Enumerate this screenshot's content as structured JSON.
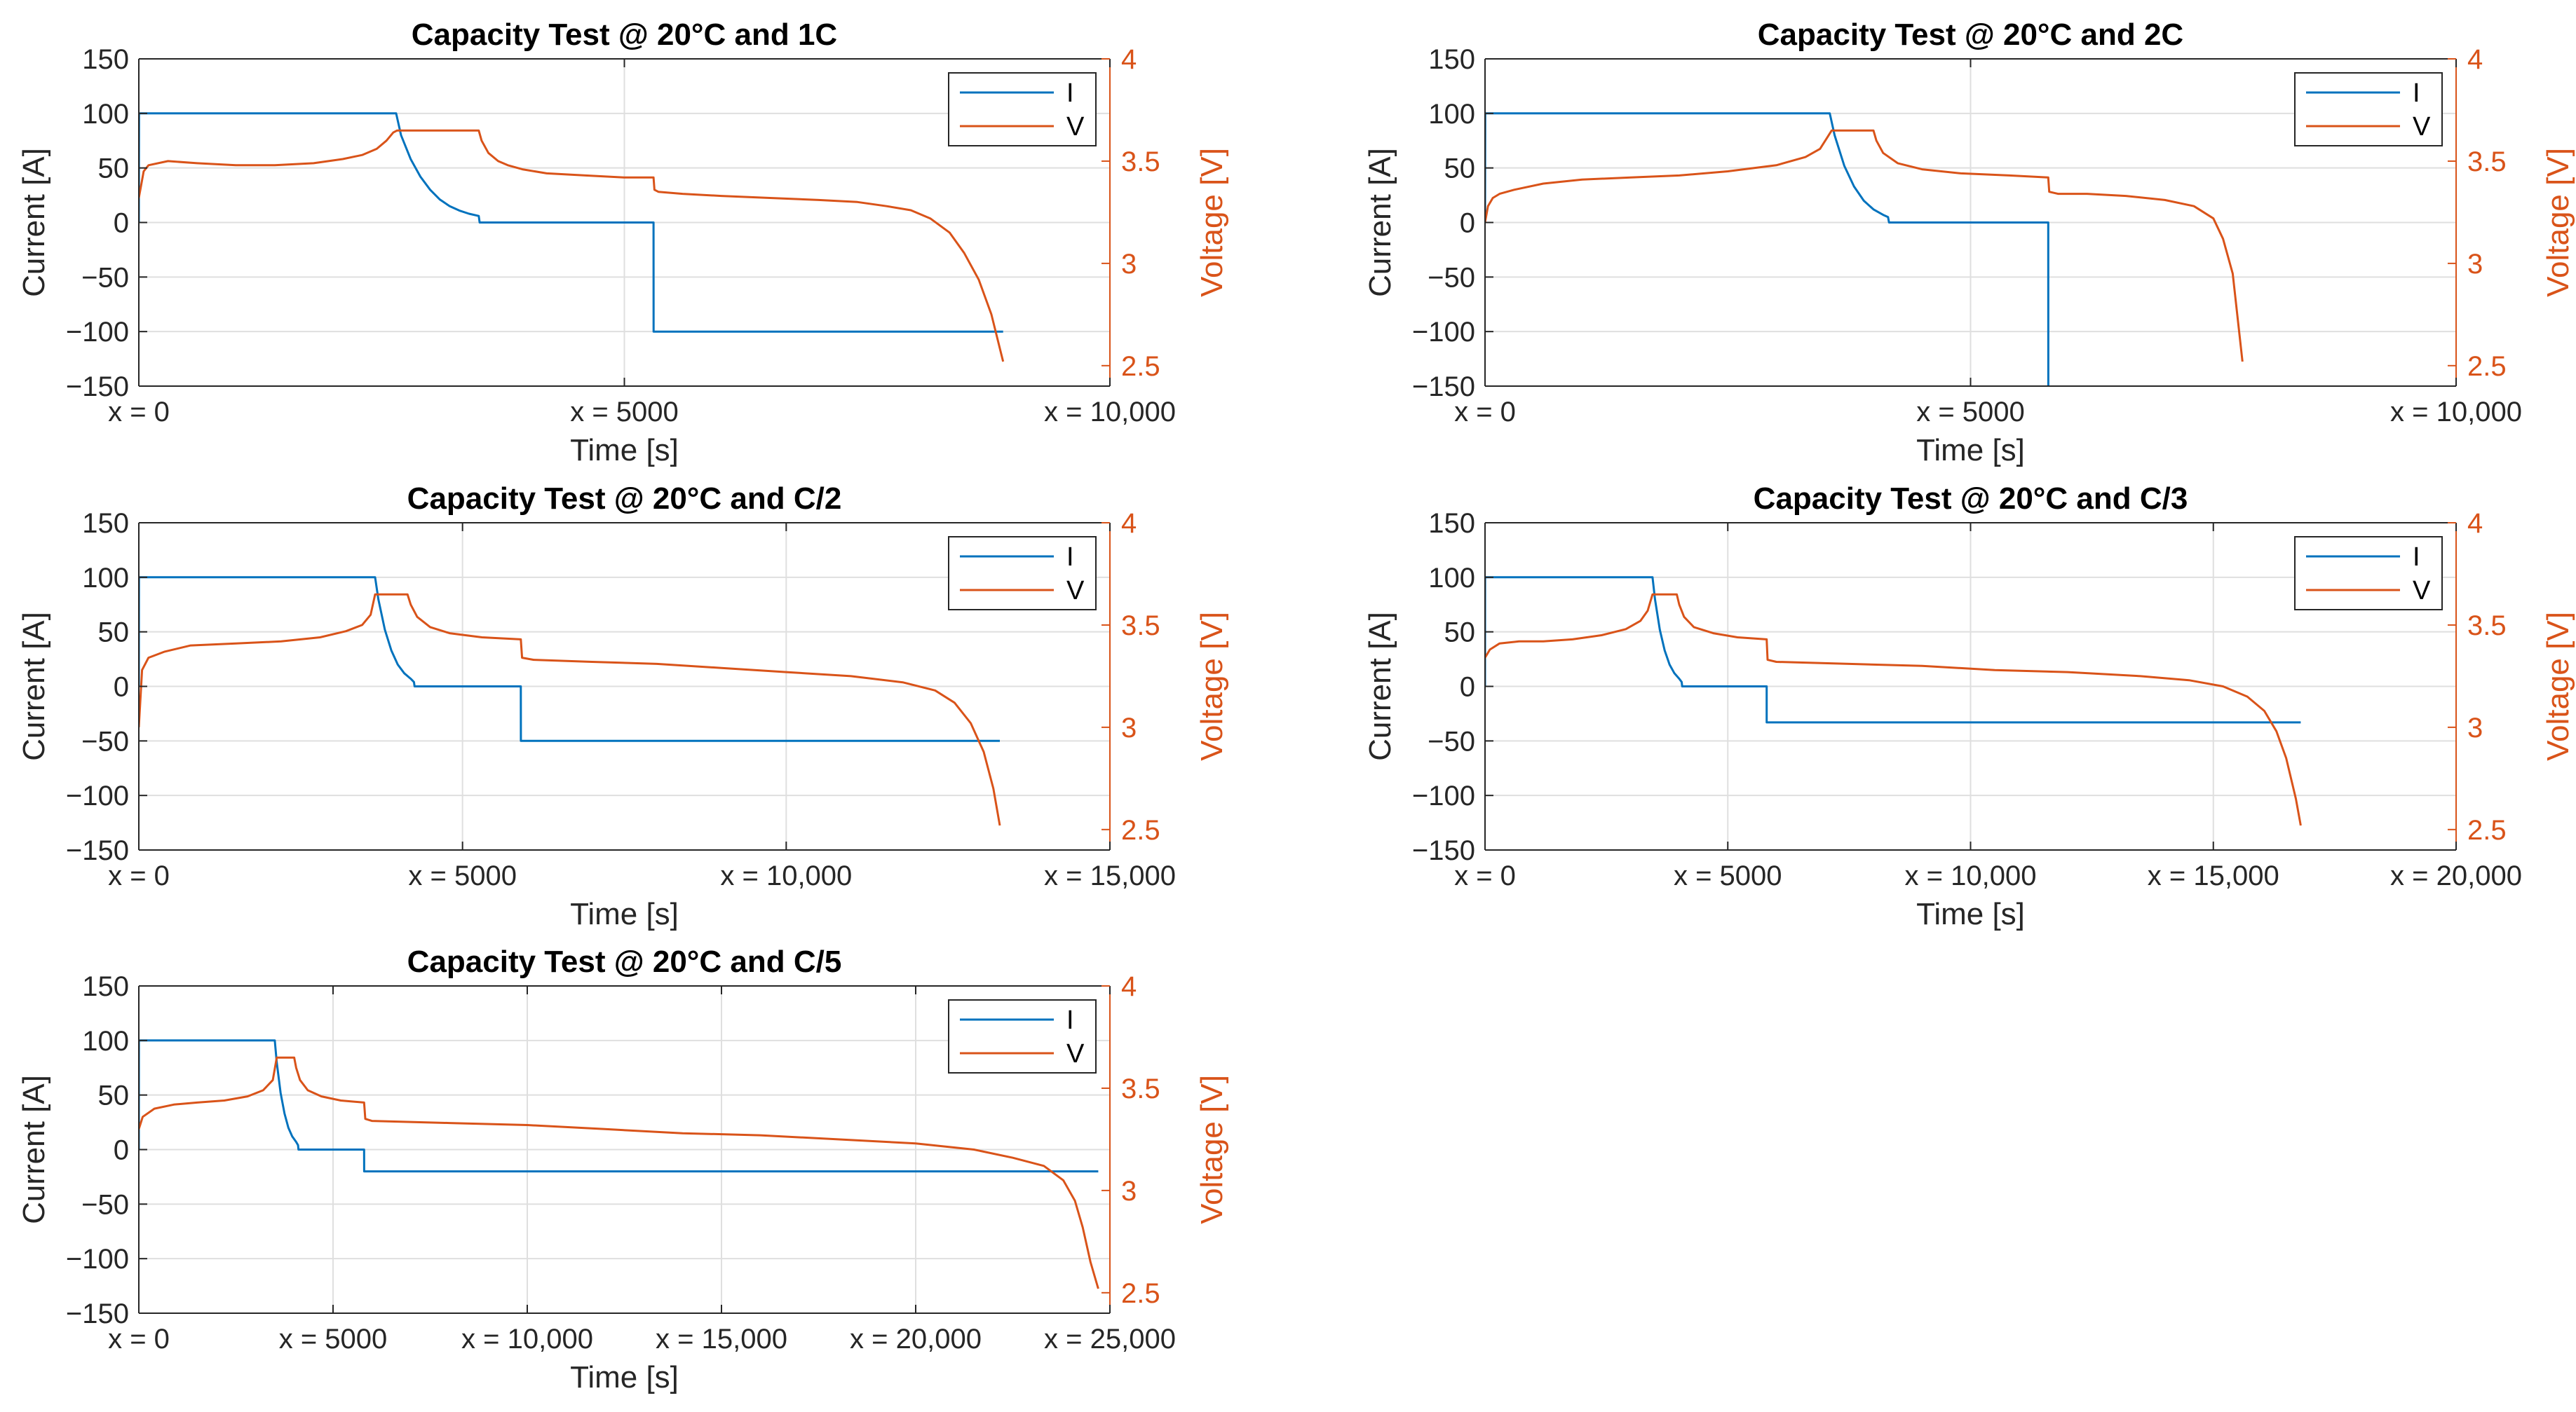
{
  "colors": {
    "current": "#0072BD",
    "voltage": "#D95319",
    "grid": "#DFDFDF",
    "axis": "#262626"
  },
  "chart_data": [
    {
      "type": "line",
      "title": "Capacity Test @ 20°C and 1C",
      "xlabel": "Time [s]",
      "ylabel": "Current [A]",
      "y2label": "Voltage [V]",
      "xlim": [
        0,
        10000
      ],
      "ylim": [
        -150,
        150
      ],
      "y2lim": [
        2.4,
        4.0
      ],
      "xticks": [
        0,
        5000,
        10000
      ],
      "xtick_labels": [
        "x = 0",
        "x = 5000",
        "x = 10,000"
      ],
      "yticks": [
        -150,
        -100,
        -50,
        0,
        50,
        100,
        150
      ],
      "ytick_labels": [
        "−150",
        "−100",
        "−50",
        "0",
        "50",
        "100",
        "150"
      ],
      "y2ticks": [
        2.5,
        3,
        3.5,
        4
      ],
      "y2tick_labels": [
        "2.5",
        "3",
        "3.5",
        "4"
      ],
      "legend": [
        "I",
        "V"
      ],
      "legend_position": "top-right",
      "grid": true,
      "series": [
        {
          "name": "I",
          "axis": "left",
          "x": [
            0,
            2,
            2650,
            2700,
            2800,
            2900,
            3000,
            3100,
            3200,
            3300,
            3400,
            3500,
            3510,
            5300,
            5301,
            8900
          ],
          "y": [
            0,
            100,
            100,
            80,
            58,
            42,
            30,
            21,
            15,
            11,
            8,
            6,
            0,
            0,
            -100,
            -100
          ]
        },
        {
          "name": "V",
          "axis": "right",
          "x": [
            0,
            50,
            100,
            300,
            600,
            1000,
            1400,
            1800,
            2100,
            2300,
            2450,
            2550,
            2620,
            2660,
            3500,
            3530,
            3600,
            3700,
            3800,
            3950,
            4200,
            4600,
            5000,
            5300,
            5310,
            5350,
            5600,
            6000,
            6500,
            7000,
            7400,
            7700,
            7950,
            8150,
            8350,
            8500,
            8650,
            8780,
            8900
          ],
          "y": [
            3.32,
            3.45,
            3.48,
            3.5,
            3.49,
            3.48,
            3.48,
            3.49,
            3.51,
            3.53,
            3.56,
            3.6,
            3.64,
            3.65,
            3.65,
            3.6,
            3.54,
            3.5,
            3.48,
            3.46,
            3.44,
            3.43,
            3.42,
            3.42,
            3.36,
            3.35,
            3.34,
            3.33,
            3.32,
            3.31,
            3.3,
            3.28,
            3.26,
            3.22,
            3.15,
            3.05,
            2.92,
            2.75,
            2.52
          ]
        }
      ]
    },
    {
      "type": "line",
      "title": "Capacity Test @ 20°C and 2C",
      "xlabel": "Time [s]",
      "ylabel": "Current [A]",
      "y2label": "Voltage [V]",
      "xlim": [
        0,
        10000
      ],
      "ylim": [
        -150,
        150
      ],
      "y2lim": [
        2.4,
        4.0
      ],
      "xticks": [
        0,
        5000,
        10000
      ],
      "xtick_labels": [
        "x = 0",
        "x = 5000",
        "x = 10,000"
      ],
      "yticks": [
        -150,
        -100,
        -50,
        0,
        50,
        100,
        150
      ],
      "ytick_labels": [
        "−150",
        "−100",
        "−50",
        "0",
        "50",
        "100",
        "150"
      ],
      "y2ticks": [
        2.5,
        3,
        3.5,
        4
      ],
      "y2tick_labels": [
        "2.5",
        "3",
        "3.5",
        "4"
      ],
      "legend": [
        "I",
        "V"
      ],
      "legend_position": "top-right",
      "grid": true,
      "series": [
        {
          "name": "I",
          "axis": "left",
          "x": [
            0,
            2,
            3550,
            3600,
            3700,
            3800,
            3900,
            4000,
            4100,
            4150,
            4160,
            5800,
            5801
          ],
          "y": [
            0,
            100,
            100,
            80,
            52,
            33,
            20,
            12,
            7,
            5,
            0,
            0,
            -150
          ]
        },
        {
          "name": "V",
          "axis": "right",
          "x": [
            0,
            30,
            80,
            150,
            300,
            600,
            1000,
            1500,
            2000,
            2500,
            3000,
            3300,
            3450,
            3530,
            3570,
            4000,
            4030,
            4100,
            4250,
            4500,
            4900,
            5400,
            5800,
            5810,
            5900,
            6200,
            6600,
            7000,
            7300,
            7500,
            7600,
            7700,
            7800
          ],
          "y": [
            3.2,
            3.28,
            3.32,
            3.34,
            3.36,
            3.39,
            3.41,
            3.42,
            3.43,
            3.45,
            3.48,
            3.52,
            3.56,
            3.62,
            3.65,
            3.65,
            3.6,
            3.54,
            3.49,
            3.46,
            3.44,
            3.43,
            3.42,
            3.35,
            3.34,
            3.34,
            3.33,
            3.31,
            3.28,
            3.22,
            3.12,
            2.95,
            2.52
          ]
        }
      ]
    },
    {
      "type": "line",
      "title": "Capacity Test @ 20°C and C/2",
      "xlabel": "Time [s]",
      "ylabel": "Current [A]",
      "y2label": "Voltage [V]",
      "xlim": [
        0,
        15000
      ],
      "ylim": [
        -150,
        150
      ],
      "y2lim": [
        2.4,
        4.0
      ],
      "xticks": [
        0,
        5000,
        10000,
        15000
      ],
      "xtick_labels": [
        "x = 0",
        "x = 5000",
        "x = 10,000",
        "x = 15,000"
      ],
      "yticks": [
        -150,
        -100,
        -50,
        0,
        50,
        100,
        150
      ],
      "ytick_labels": [
        "−150",
        "−100",
        "−50",
        "0",
        "50",
        "100",
        "150"
      ],
      "y2ticks": [
        2.5,
        3,
        3.5,
        4
      ],
      "y2tick_labels": [
        "2.5",
        "3",
        "3.5",
        "4"
      ],
      "legend": [
        "I",
        "V"
      ],
      "legend_position": "top-right",
      "grid": true,
      "series": [
        {
          "name": "I",
          "axis": "left",
          "x": [
            0,
            2,
            3650,
            3700,
            3800,
            3900,
            4000,
            4100,
            4200,
            4250,
            4260,
            5900,
            5901,
            13300
          ],
          "y": [
            0,
            100,
            100,
            80,
            52,
            33,
            20,
            12,
            7,
            4,
            0,
            0,
            -50,
            -50
          ]
        },
        {
          "name": "V",
          "axis": "right",
          "x": [
            0,
            50,
            150,
            400,
            800,
            1500,
            2200,
            2800,
            3200,
            3450,
            3580,
            3650,
            4150,
            4200,
            4300,
            4500,
            4800,
            5300,
            5900,
            5920,
            6100,
            7000,
            8000,
            9000,
            10000,
            11000,
            11800,
            12300,
            12600,
            12850,
            13050,
            13200,
            13300
          ],
          "y": [
            3.0,
            3.28,
            3.34,
            3.37,
            3.4,
            3.41,
            3.42,
            3.44,
            3.47,
            3.5,
            3.55,
            3.65,
            3.65,
            3.6,
            3.54,
            3.49,
            3.46,
            3.44,
            3.43,
            3.34,
            3.33,
            3.32,
            3.31,
            3.29,
            3.27,
            3.25,
            3.22,
            3.18,
            3.12,
            3.02,
            2.88,
            2.7,
            2.52
          ]
        }
      ]
    },
    {
      "type": "line",
      "title": "Capacity Test @ 20°C and C/3",
      "xlabel": "Time [s]",
      "ylabel": "Current [A]",
      "y2label": "Voltage [V]",
      "xlim": [
        0,
        20000
      ],
      "ylim": [
        -150,
        150
      ],
      "y2lim": [
        2.4,
        4.0
      ],
      "xticks": [
        0,
        5000,
        10000,
        15000,
        20000
      ],
      "xtick_labels": [
        "x = 0",
        "x = 5000",
        "x = 10,000",
        "x = 15,000",
        "x = 20,000"
      ],
      "yticks": [
        -150,
        -100,
        -50,
        0,
        50,
        100,
        150
      ],
      "ytick_labels": [
        "−150",
        "−100",
        "−50",
        "0",
        "50",
        "100",
        "150"
      ],
      "y2ticks": [
        2.5,
        3,
        3.5,
        4
      ],
      "y2tick_labels": [
        "2.5",
        "3",
        "3.5",
        "4"
      ],
      "legend": [
        "I",
        "V"
      ],
      "legend_position": "top-right",
      "grid": true,
      "series": [
        {
          "name": "I",
          "axis": "left",
          "x": [
            0,
            2,
            3450,
            3500,
            3600,
            3700,
            3800,
            3900,
            4000,
            4050,
            4060,
            5800,
            5801,
            16800
          ],
          "y": [
            0,
            100,
            100,
            80,
            52,
            33,
            20,
            12,
            7,
            4,
            0,
            0,
            -33,
            -33
          ]
        },
        {
          "name": "V",
          "axis": "right",
          "x": [
            0,
            100,
            300,
            700,
            1200,
            1800,
            2400,
            2900,
            3200,
            3350,
            3450,
            3950,
            4000,
            4100,
            4300,
            4700,
            5200,
            5800,
            5820,
            6000,
            7500,
            9000,
            10500,
            12000,
            13500,
            14500,
            15200,
            15700,
            16050,
            16300,
            16500,
            16700,
            16800
          ],
          "y": [
            3.34,
            3.38,
            3.41,
            3.42,
            3.42,
            3.43,
            3.45,
            3.48,
            3.52,
            3.57,
            3.65,
            3.65,
            3.6,
            3.54,
            3.49,
            3.46,
            3.44,
            3.43,
            3.33,
            3.32,
            3.31,
            3.3,
            3.28,
            3.27,
            3.25,
            3.23,
            3.2,
            3.15,
            3.08,
            2.98,
            2.85,
            2.65,
            2.52
          ]
        }
      ]
    },
    {
      "type": "line",
      "title": "Capacity Test @ 20°C and C/5",
      "xlabel": "Time [s]",
      "ylabel": "Current [A]",
      "y2label": "Voltage [V]",
      "xlim": [
        0,
        25000
      ],
      "ylim": [
        -150,
        150
      ],
      "y2lim": [
        2.4,
        4.0
      ],
      "xticks": [
        0,
        5000,
        10000,
        15000,
        20000,
        25000
      ],
      "xtick_labels": [
        "x = 0",
        "x = 5000",
        "x = 10,000",
        "x = 15,000",
        "x = 20,000",
        "x = 25,000"
      ],
      "yticks": [
        -150,
        -100,
        -50,
        0,
        50,
        100,
        150
      ],
      "ytick_labels": [
        "−150",
        "−100",
        "−50",
        "0",
        "50",
        "100",
        "150"
      ],
      "y2ticks": [
        2.5,
        3,
        3.5,
        4
      ],
      "y2tick_labels": [
        "2.5",
        "3",
        "3.5",
        "4"
      ],
      "legend": [
        "I",
        "V"
      ],
      "legend_position": "top-right",
      "grid": true,
      "series": [
        {
          "name": "I",
          "axis": "left",
          "x": [
            0,
            2,
            3500,
            3550,
            3650,
            3750,
            3850,
            3950,
            4050,
            4100,
            4110,
            5800,
            5801,
            24700
          ],
          "y": [
            0,
            100,
            100,
            80,
            52,
            33,
            20,
            12,
            7,
            4,
            0,
            0,
            -20,
            -20
          ]
        },
        {
          "name": "V",
          "axis": "right",
          "x": [
            0,
            100,
            400,
            900,
            1500,
            2200,
            2800,
            3200,
            3450,
            3550,
            4000,
            4050,
            4150,
            4350,
            4700,
            5200,
            5800,
            5830,
            6000,
            8000,
            10000,
            12000,
            14000,
            16000,
            18000,
            20000,
            21500,
            22500,
            23300,
            23800,
            24100,
            24300,
            24500,
            24700
          ],
          "y": [
            3.3,
            3.36,
            3.4,
            3.42,
            3.43,
            3.44,
            3.46,
            3.49,
            3.54,
            3.65,
            3.65,
            3.6,
            3.54,
            3.49,
            3.46,
            3.44,
            3.43,
            3.35,
            3.34,
            3.33,
            3.32,
            3.3,
            3.28,
            3.27,
            3.25,
            3.23,
            3.2,
            3.16,
            3.12,
            3.05,
            2.95,
            2.82,
            2.65,
            2.52
          ]
        }
      ]
    }
  ]
}
